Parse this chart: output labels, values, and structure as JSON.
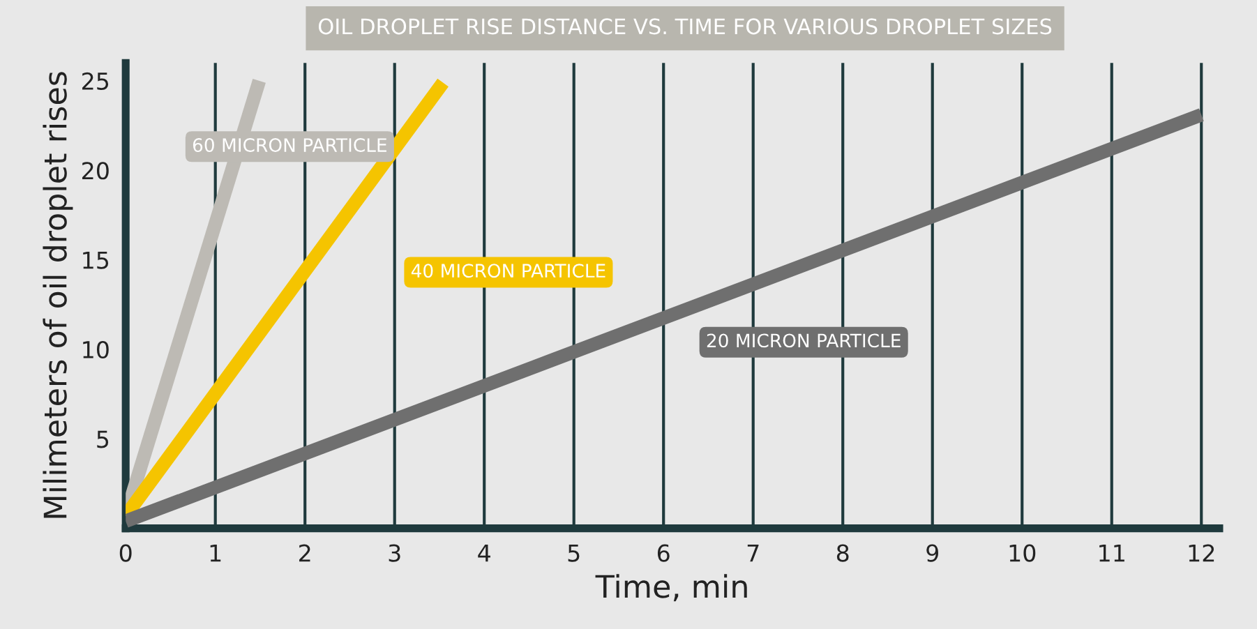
{
  "chart_data": {
    "type": "line",
    "title": "OIL DROPLET RISE DISTANCE VS. TIME FOR VARIOUS DROPLET SIZES",
    "xlabel": "Time, min",
    "ylabel": "Milimeters of oil droplet rises",
    "series": [
      {
        "name": "60 MICRON PARTICLE",
        "color": "#bdbab4",
        "x": [
          0,
          1.49
        ],
        "values": [
          0.7,
          25
        ]
      },
      {
        "name": "40 MICRON PARTICLE",
        "color": "#f5c400",
        "x": [
          0,
          3.54
        ],
        "values": [
          0.7,
          24.9
        ]
      },
      {
        "name": "20 MICRON PARTICLE",
        "color": "#6f6f6f",
        "x": [
          0,
          12
        ],
        "values": [
          0.4,
          23.1
        ]
      }
    ],
    "xlim": [
      0,
      12.2
    ],
    "ylim": [
      0,
      26
    ],
    "xticks": [
      0,
      1,
      2,
      3,
      4,
      5,
      6,
      7,
      8,
      9,
      10,
      11,
      12
    ],
    "yticks": [
      5,
      10,
      15,
      20,
      25
    ],
    "grid": "x",
    "legend": false,
    "marker": "none",
    "line_style": "solid"
  }
}
